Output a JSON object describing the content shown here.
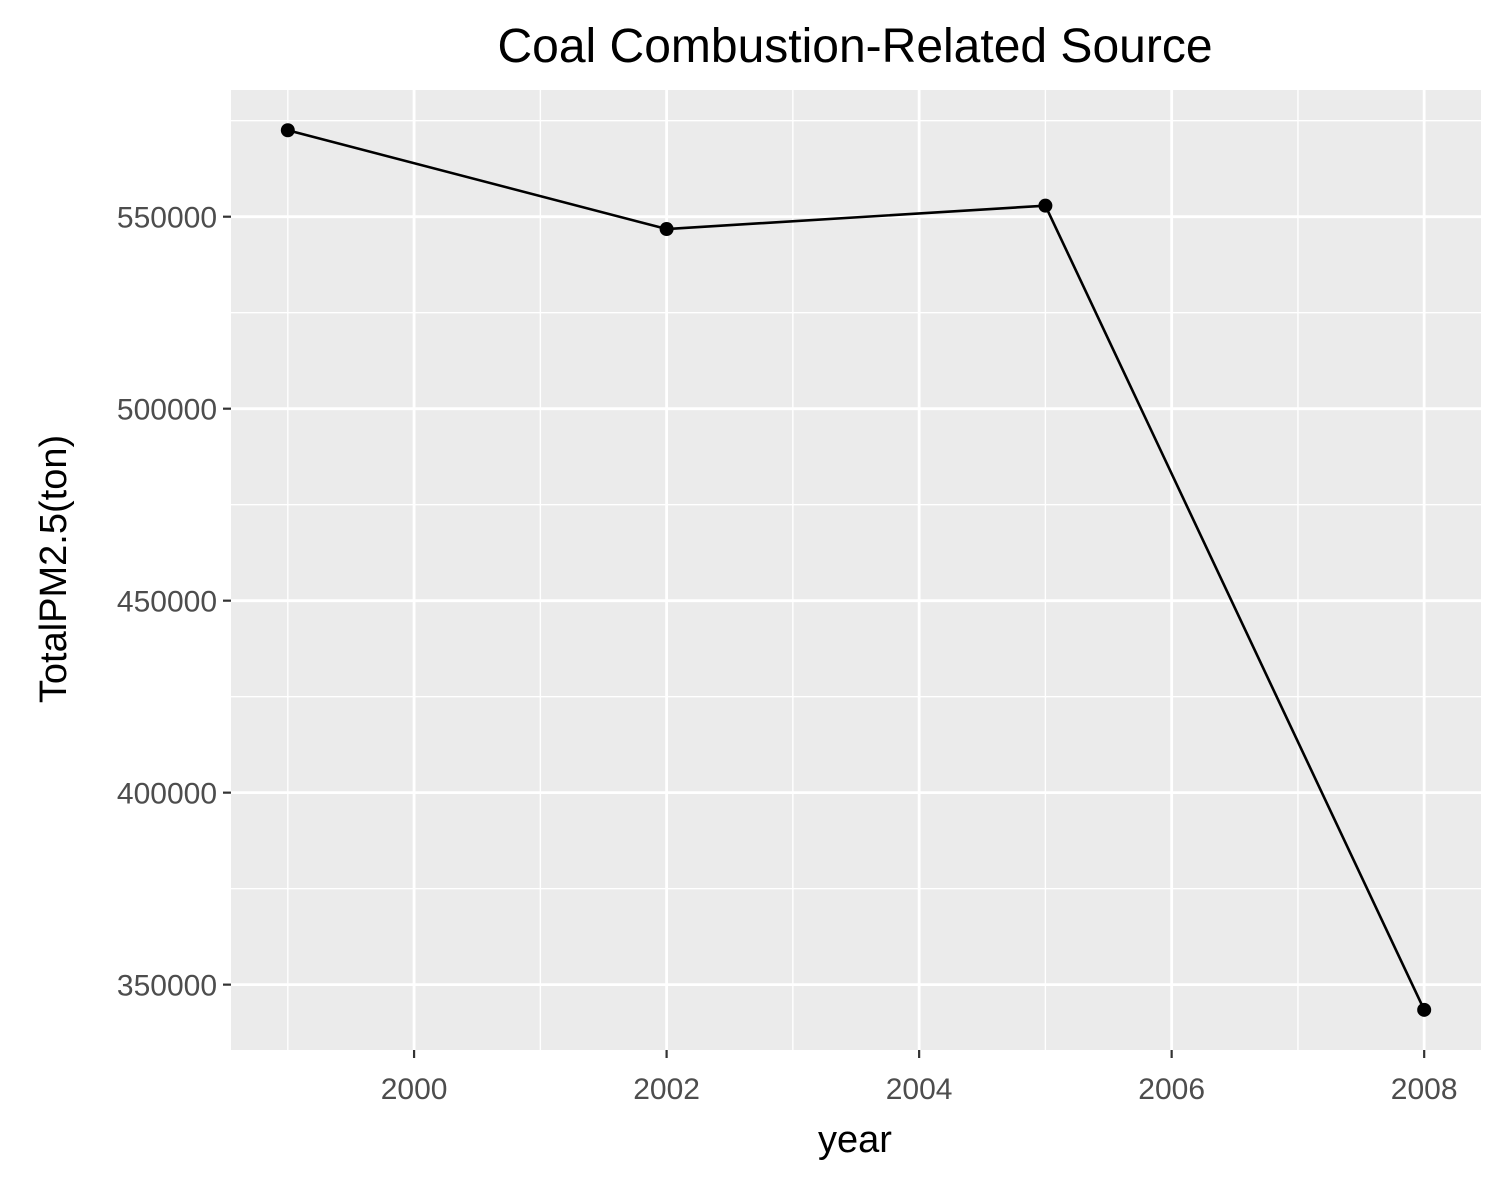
{
  "chart_data": {
    "type": "line",
    "title": "Coal Combustion-Related Source",
    "xlabel": "year",
    "ylabel": "TotalPM2.5(ton)",
    "x": [
      1999,
      2002,
      2005,
      2008
    ],
    "series": [
      {
        "values": [
          572520,
          546789,
          552881,
          343432
        ]
      }
    ],
    "xlim": [
      1998.55,
      2008.45
    ],
    "ylim": [
      332978,
      583000
    ],
    "x_ticks": [
      2000,
      2002,
      2004,
      2006,
      2008
    ],
    "x_tick_labels": [
      "2000",
      "2002",
      "2004",
      "2006",
      "2008"
    ],
    "y_ticks": [
      350000,
      400000,
      450000,
      500000,
      550000
    ],
    "y_tick_labels": [
      "350000",
      "400000",
      "450000",
      "500000",
      "550000"
    ],
    "grid": true,
    "legend": "none",
    "colors": {
      "panel_background": "#ebebeb",
      "grid": "#ffffff",
      "line": "#000000",
      "tick_text": "#4d4d4d",
      "tick_mark": "#333333"
    }
  }
}
